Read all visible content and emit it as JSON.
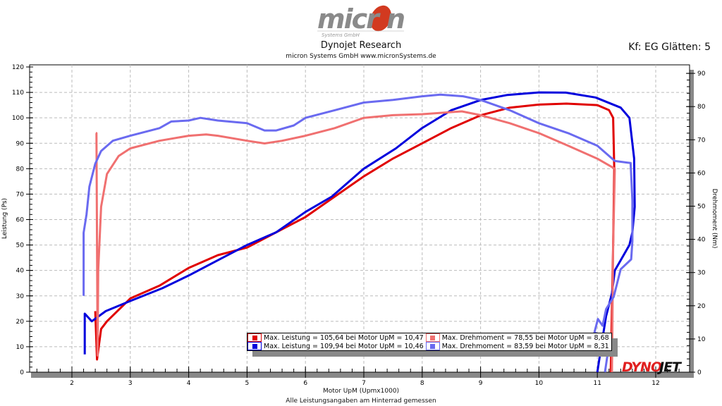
{
  "header": {
    "logo_text": "micron",
    "logo_subtext": "Systems GmbH",
    "title": "Dynojet Research",
    "subtitle": "micron Systems GmbH  www.micronSystems.de",
    "smoothing": "Kf: EG Glätten: 5"
  },
  "footer": {
    "note": "Alle Leistungsangaben am Hinterrad gemessen",
    "brand_logo": "DYNOJET"
  },
  "chart_data": {
    "type": "line",
    "xlabel": "Motor UpM (Upmx1000)",
    "ylabel": "Leistung (Ps)",
    "y2label": "Drehmoment (Nm)",
    "xlim": [
      1.3,
      12.55
    ],
    "ylim": [
      0,
      120
    ],
    "y2lim": [
      0,
      91.7
    ],
    "xticks": [
      2,
      3,
      4,
      5,
      6,
      7,
      8,
      9,
      10,
      11,
      12
    ],
    "yticks": [
      0,
      10,
      20,
      30,
      40,
      50,
      60,
      70,
      80,
      90,
      100,
      110,
      120
    ],
    "y2ticks": [
      0,
      10,
      20,
      30,
      40,
      50,
      60,
      70,
      80,
      90
    ],
    "grid": true,
    "legend_position": "bottom-center",
    "series": [
      {
        "axis": "left",
        "color": "#e00000",
        "x": [
          2.4,
          2.43,
          2.5,
          2.6,
          3,
          3.5,
          4,
          4.5,
          5,
          5.5,
          6,
          6.5,
          7,
          7.5,
          8,
          8.5,
          9,
          9.5,
          10,
          10.47,
          11,
          11.2,
          11.27,
          11.29,
          11.27,
          11.25,
          11.23
        ],
        "y": [
          24,
          5,
          17,
          20,
          29,
          34,
          41,
          46,
          49,
          55,
          61,
          69,
          77,
          84,
          90,
          96,
          101,
          104,
          105.2,
          105.6,
          105,
          103,
          100,
          80,
          50,
          25,
          0
        ]
      },
      {
        "axis": "left",
        "color": "#0000dd",
        "x": [
          2.22,
          2.22,
          2.34,
          2.58,
          3,
          3.55,
          4,
          4.5,
          5,
          5.5,
          6,
          6.45,
          7,
          7.55,
          8,
          8.5,
          9,
          9.46,
          10,
          10.46,
          10.97,
          11.4,
          11.55,
          11.63,
          11.64,
          11.6,
          11.55,
          11.4,
          11.3,
          11.25,
          11.15,
          11.08,
          11.0
        ],
        "y": [
          7,
          23,
          20,
          24,
          28,
          33,
          38,
          44,
          50,
          55,
          63,
          69,
          80,
          88,
          96,
          103,
          107,
          109,
          110,
          109.9,
          108,
          104,
          100,
          84,
          65,
          55,
          50,
          44,
          40,
          31,
          22,
          12,
          0
        ]
      },
      {
        "axis": "right",
        "color": "#f07070",
        "x": [
          2.41,
          2.42,
          2.44,
          2.45,
          2.5,
          2.6,
          2.8,
          3,
          3.5,
          4,
          4.3,
          4.5,
          5,
          5.3,
          5.6,
          6,
          6.5,
          7,
          7.5,
          8,
          8.68,
          9,
          9.5,
          10,
          10.5,
          11,
          11.3,
          11.27,
          11.25
        ],
        "y": [
          72,
          72,
          5,
          30.6,
          49.8,
          59.7,
          65.1,
          67.4,
          69.7,
          71.2,
          71.6,
          71.2,
          69.7,
          68.9,
          69.7,
          71.2,
          73.5,
          76.6,
          77.4,
          77.7,
          78.55,
          77.4,
          75,
          72,
          68.2,
          64.3,
          61.3,
          38,
          0
        ]
      },
      {
        "axis": "right",
        "color": "#6a6af0",
        "x": [
          2.2,
          2.2,
          2.25,
          2.3,
          2.4,
          2.5,
          2.7,
          3,
          3.5,
          3.7,
          4,
          4.2,
          4.5,
          5,
          5.3,
          5.5,
          5.8,
          6,
          6.5,
          7,
          7.5,
          8,
          8.31,
          8.7,
          9,
          9.5,
          10,
          10.5,
          11,
          11.3,
          11.57,
          11.6,
          11.6,
          11.58,
          11.4,
          11.28,
          11.15,
          11.09,
          11.01,
          10.95,
          11.21,
          11.13
        ],
        "y": [
          23,
          42,
          47.5,
          55.9,
          62.8,
          66.6,
          69.7,
          71.2,
          73.5,
          75.5,
          75.8,
          76.6,
          75.8,
          75,
          72.8,
          72.8,
          74.3,
          76.6,
          78.9,
          81.2,
          82,
          83.1,
          83.59,
          83.1,
          82,
          78.9,
          75,
          72,
          68.2,
          63.6,
          63,
          51.6,
          39.5,
          34,
          31,
          22.7,
          19,
          14,
          16,
          12,
          9.5,
          0
        ]
      }
    ],
    "legend": [
      {
        "text": "Max. Leistung = 105,64 bei Motor UpM = 10,47",
        "color": "#e00000"
      },
      {
        "text": "Max. Drehmoment = 78,55 bei Motor UpM = 8,68",
        "color": "#f07070"
      },
      {
        "text": "Max. Leistung = 109,94 bei Motor UpM = 10,46",
        "color": "#0000dd"
      },
      {
        "text": "Max. Drehmoment = 83,59 bei Motor UpM = 8,31",
        "color": "#6a6af0"
      }
    ]
  }
}
